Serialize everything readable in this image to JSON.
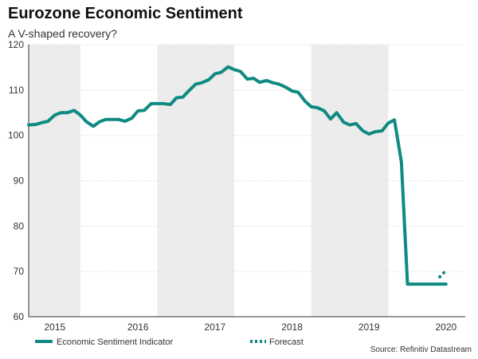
{
  "title": "Eurozone Economic Sentiment",
  "subtitle": "A V-shaped recovery?",
  "source": "Source: Refinitiv Datastream",
  "colors": {
    "line": "#0f8a82",
    "band": "#ececec",
    "axis": "#333333"
  },
  "chart_data": {
    "type": "line",
    "title": "Eurozone Economic Sentiment",
    "subtitle": "A V-shaped recovery?",
    "xlabel": "",
    "ylabel": "",
    "xlim": [
      2014.83,
      2020.5
    ],
    "ylim": [
      60,
      120
    ],
    "yticks": [
      60,
      70,
      80,
      90,
      100,
      110,
      120
    ],
    "year_labels": [
      {
        "label": "2015",
        "x": 2015.17
      },
      {
        "label": "2016",
        "x": 2016.25
      },
      {
        "label": "2017",
        "x": 2017.25
      },
      {
        "label": "2018",
        "x": 2018.25
      },
      {
        "label": "2019",
        "x": 2019.25
      },
      {
        "label": "2020",
        "x": 2020.25
      }
    ],
    "shaded_years": [
      [
        2014.83,
        2015.5
      ],
      [
        2016.5,
        2017.5
      ],
      [
        2018.5,
        2019.5
      ]
    ],
    "grid": "horizontal",
    "legend_position": "bottom",
    "series": [
      {
        "name": "Economic Sentiment Indicator",
        "style": "solid",
        "x": [
          2014.83,
          2014.92,
          2015.0,
          2015.08,
          2015.17,
          2015.25,
          2015.33,
          2015.42,
          2015.5,
          2015.58,
          2015.67,
          2015.75,
          2015.83,
          2015.92,
          2016.0,
          2016.08,
          2016.17,
          2016.25,
          2016.33,
          2016.42,
          2016.5,
          2016.58,
          2016.67,
          2016.75,
          2016.83,
          2016.92,
          2017.0,
          2017.08,
          2017.17,
          2017.25,
          2017.33,
          2017.42,
          2017.5,
          2017.58,
          2017.67,
          2017.75,
          2017.83,
          2017.92,
          2018.0,
          2018.08,
          2018.17,
          2018.25,
          2018.33,
          2018.42,
          2018.5,
          2018.58,
          2018.67,
          2018.75,
          2018.83,
          2018.92,
          2019.0,
          2019.08,
          2019.17,
          2019.25,
          2019.33,
          2019.42,
          2019.5,
          2019.58,
          2019.67,
          2019.75,
          2019.83,
          2019.92,
          2020.0,
          2020.08,
          2020.17,
          2020.25
        ],
        "values": [
          102.3,
          102.4,
          102.8,
          103.1,
          104.5,
          105.0,
          105.0,
          105.5,
          104.5,
          103.0,
          102.0,
          103.0,
          103.5,
          103.5,
          103.5,
          103.1,
          103.8,
          105.4,
          105.5,
          107.0,
          107.0,
          107.0,
          106.8,
          108.3,
          108.4,
          110.0,
          111.3,
          111.6,
          112.3,
          113.6,
          113.9,
          115.1,
          114.5,
          114.1,
          112.4,
          112.6,
          111.7,
          112.1,
          111.6,
          111.3,
          110.6,
          109.8,
          109.5,
          107.5,
          106.3,
          106.1,
          105.4,
          103.6,
          105.0,
          102.9,
          102.3,
          102.6,
          101.0,
          100.3,
          100.8,
          101.0,
          102.7,
          103.4,
          94.2,
          67.2,
          67.2,
          67.2,
          67.2,
          67.2,
          67.2,
          67.2
        ]
      },
      {
        "name": "Forecast",
        "style": "dotted",
        "x": [
          2020.17,
          2020.25
        ],
        "values": [
          68.8,
          70.2
        ]
      }
    ]
  }
}
